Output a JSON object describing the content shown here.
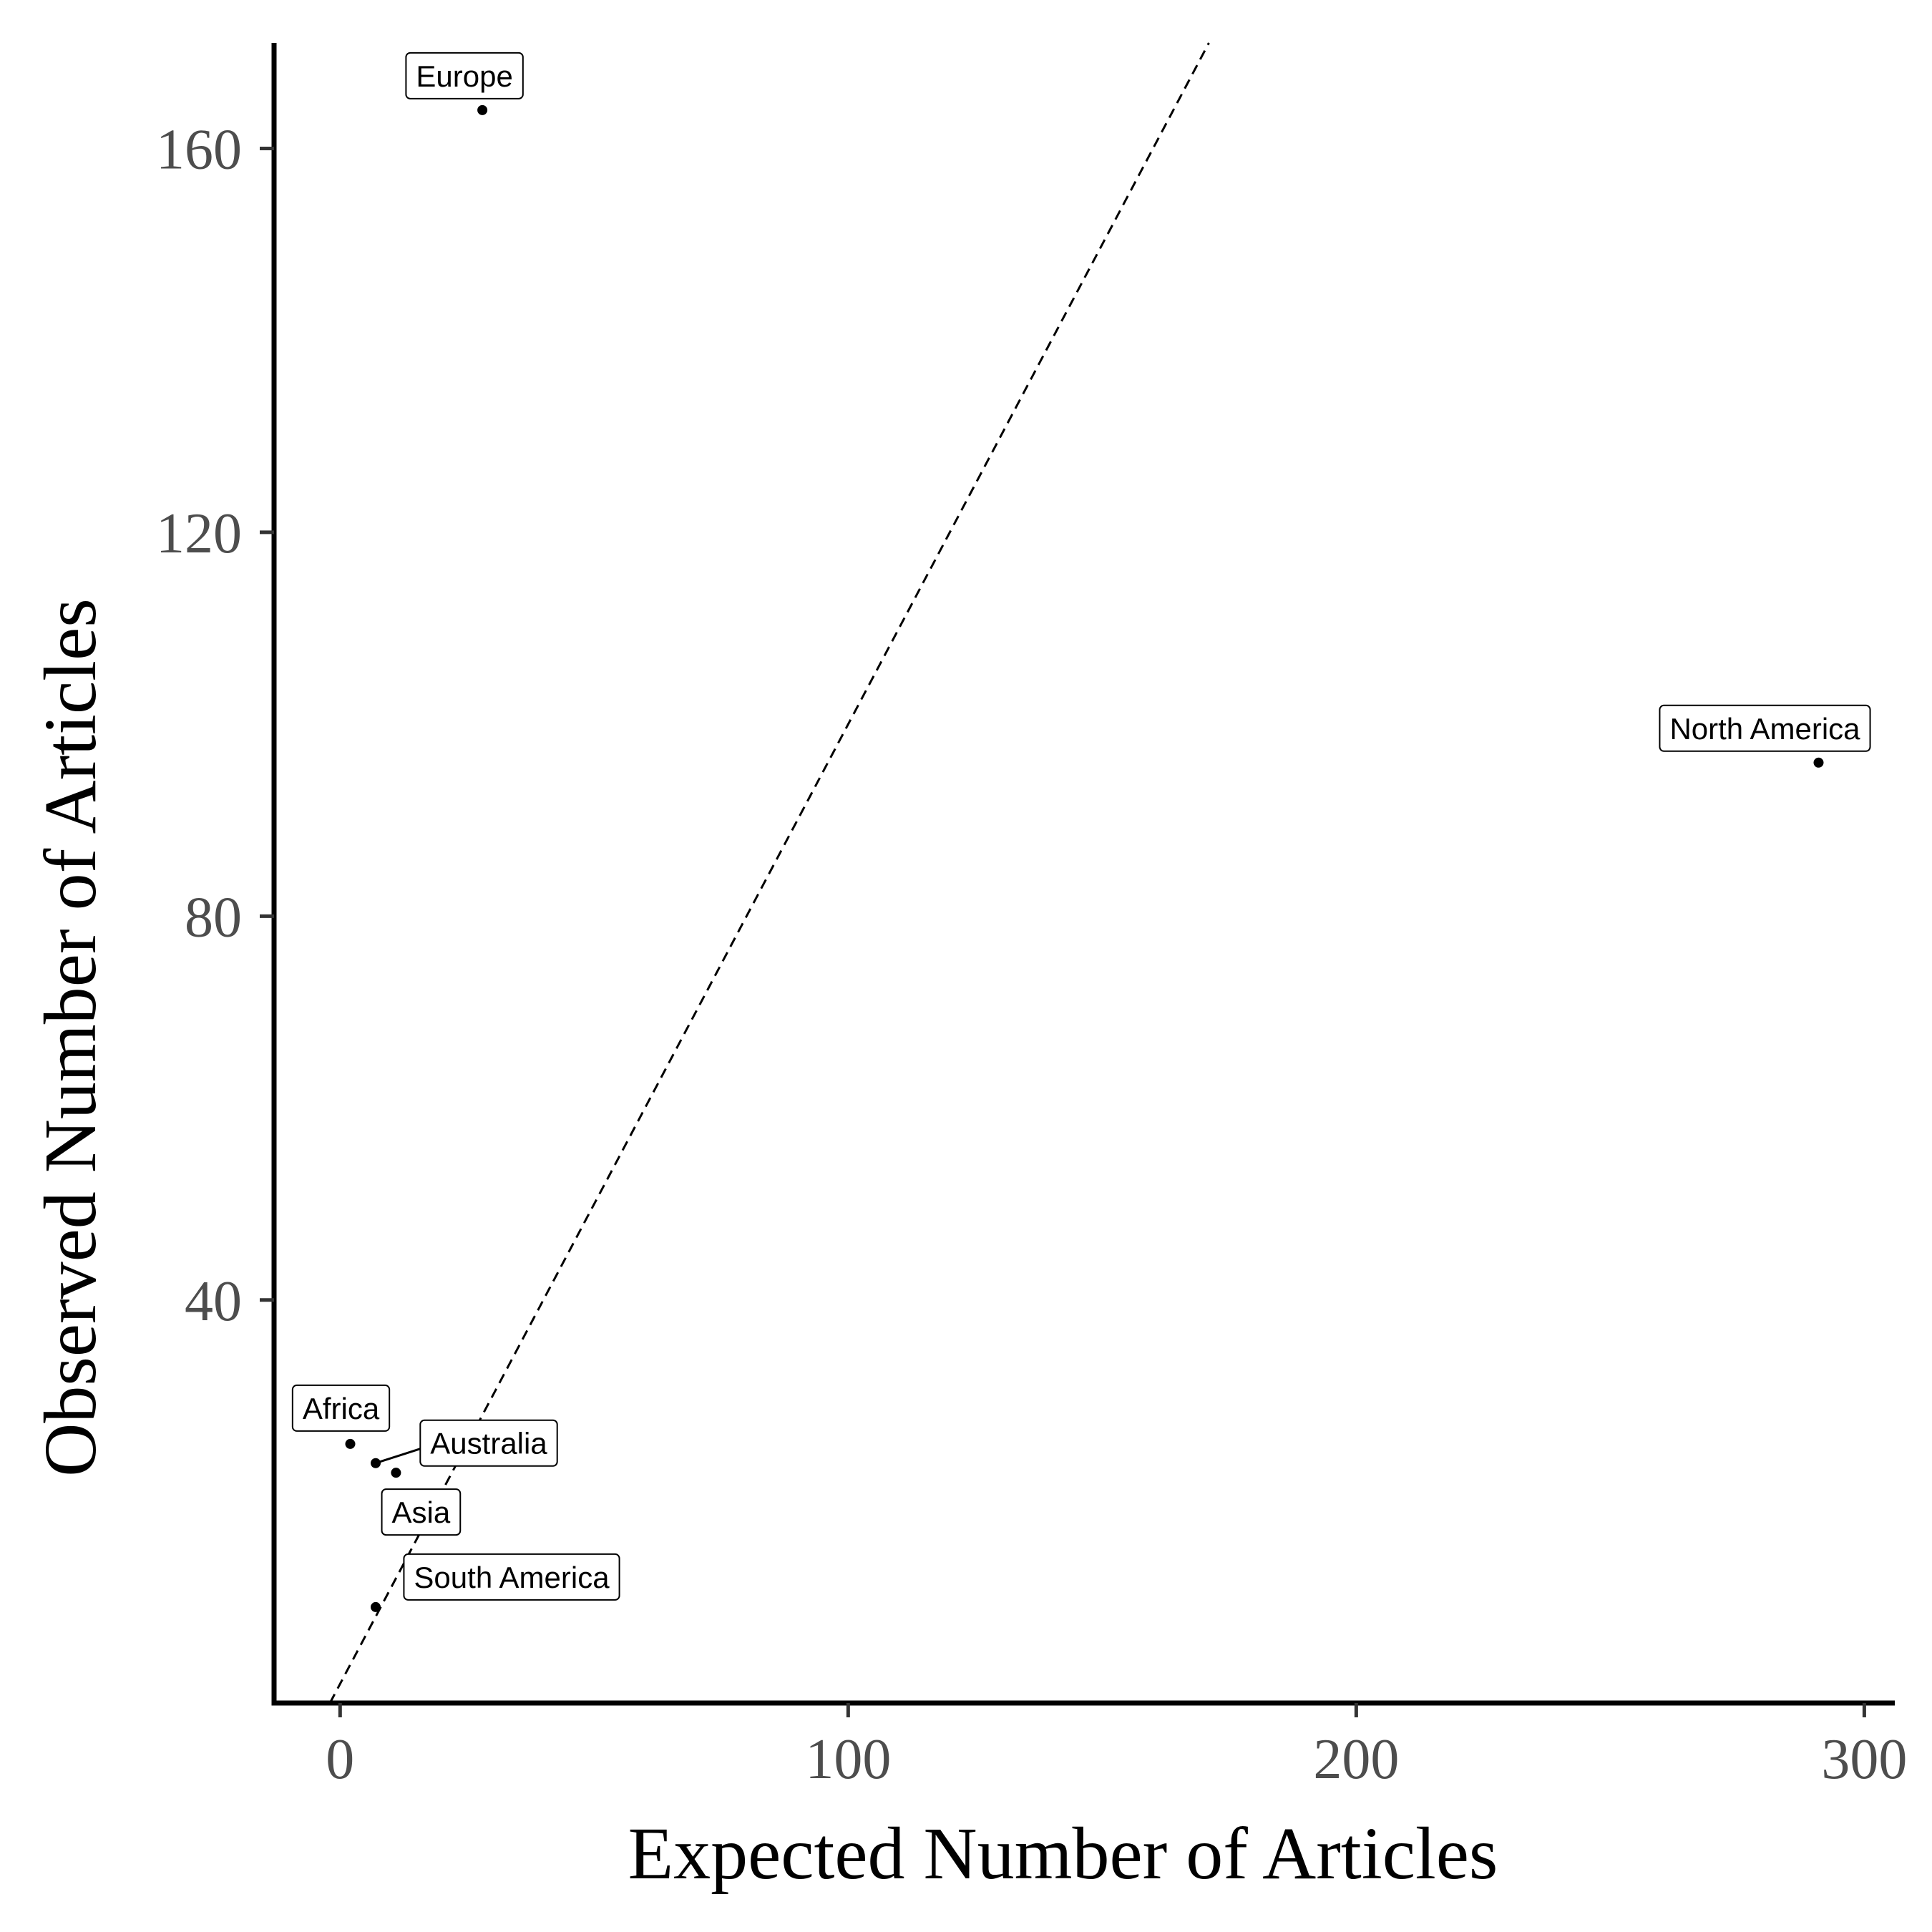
{
  "chart_data": {
    "type": "scatter",
    "title": "",
    "xlabel": "Expected Number of Articles",
    "ylabel": "Observed Number of Articles",
    "xlim": [
      -13,
      306
    ],
    "ylim": [
      -2,
      171
    ],
    "xticks": [
      0,
      100,
      200,
      300
    ],
    "yticks": [
      40,
      80,
      120,
      160
    ],
    "grid": false,
    "legend": "none",
    "reference_line": {
      "style": "dashed",
      "slope": 1,
      "intercept": 0
    },
    "points": [
      {
        "label": "Europe",
        "x": 28,
        "y": 164
      },
      {
        "label": "North America",
        "x": 291,
        "y": 96
      },
      {
        "label": "Africa",
        "x": 2,
        "y": 25
      },
      {
        "label": "Australia",
        "x": 7,
        "y": 23
      },
      {
        "label": "Asia",
        "x": 11,
        "y": 22
      },
      {
        "label": "South America",
        "x": 7,
        "y": 8
      }
    ]
  }
}
